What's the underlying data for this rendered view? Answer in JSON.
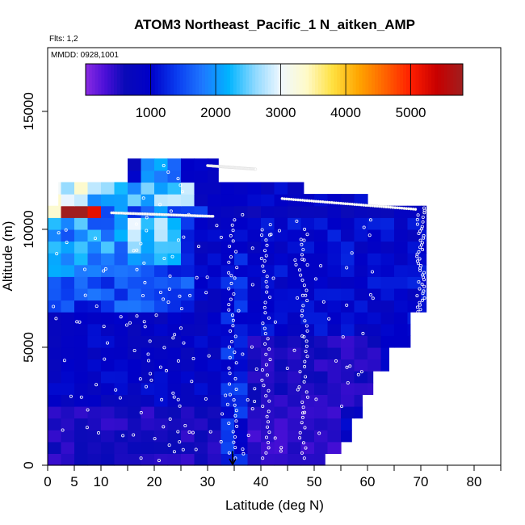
{
  "chart_data": {
    "type": "heatmap",
    "title": "ATOM3 Northeast_Pacific_1 N_aitken_AMP",
    "flights_note": "Flts: 1,2",
    "dates_note": "MMDD: 0928,1001",
    "xlabel": "Latitude (deg N)",
    "ylabel": "Altitude (m)",
    "xlim": [
      0,
      85
    ],
    "ylim": [
      0,
      17700
    ],
    "xticks": [
      0,
      5,
      10,
      20,
      30,
      40,
      50,
      60,
      70,
      80
    ],
    "yticks": [
      0,
      5000,
      10000,
      15000
    ],
    "colorbar": {
      "min": 0,
      "max": 5800,
      "ticks": [
        1000,
        2000,
        3000,
        4000,
        5000
      ],
      "stops": [
        {
          "v": 0,
          "c": "#8a2be2"
        },
        {
          "v": 300,
          "c": "#4b0fd8"
        },
        {
          "v": 600,
          "c": "#0a0ab8"
        },
        {
          "v": 1000,
          "c": "#0000c8"
        },
        {
          "v": 1400,
          "c": "#0a3cf0"
        },
        {
          "v": 1800,
          "c": "#1e78ff"
        },
        {
          "v": 2200,
          "c": "#00b4ff"
        },
        {
          "v": 2600,
          "c": "#8cd8ff"
        },
        {
          "v": 3000,
          "c": "#f0f8ff"
        },
        {
          "v": 3400,
          "c": "#fffac8"
        },
        {
          "v": 3800,
          "c": "#ffe040"
        },
        {
          "v": 4200,
          "c": "#ffa500"
        },
        {
          "v": 4600,
          "c": "#ff6400"
        },
        {
          "v": 5000,
          "c": "#ff1e00"
        },
        {
          "v": 5400,
          "c": "#c80000"
        },
        {
          "v": 5800,
          "c": "#a01e1e"
        }
      ]
    },
    "arrow_latitude": 34.7,
    "profiles": [
      {
        "lat": 16,
        "lat_to": 26,
        "alt_from": 300,
        "alt_to": 12700,
        "level": "mixed"
      },
      {
        "lat": 34.7,
        "alt_from": 300,
        "alt_to": 10400,
        "level": "mixed"
      },
      {
        "lat": 41,
        "alt_from": 300,
        "alt_to": 10200,
        "level": "mixed"
      },
      {
        "lat": 48,
        "alt_from": 300,
        "alt_to": 10000,
        "level": "mixed"
      },
      {
        "lat": 70,
        "alt_from": 6500,
        "alt_to": 10900,
        "level": "mixed"
      }
    ],
    "data_summary": "Gridded N_aitken (AMP) concentration by latitude (~0-71 N) and altitude (0-12.8 km); values mostly 500-1500, elevated 1800-2800 near 0-25 N at 7-11 km, peak ~5500 near 3-7 N at ~10.5 km."
  }
}
